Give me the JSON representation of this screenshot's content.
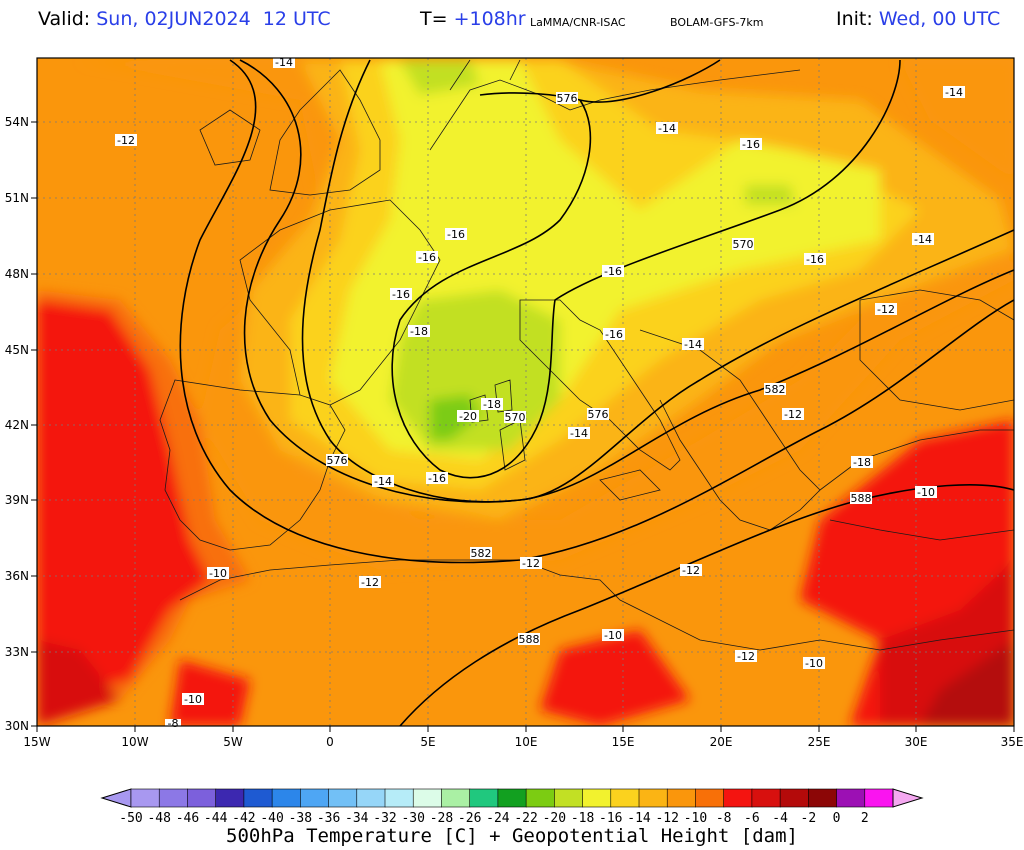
{
  "header": {
    "valid_label": "Valid:",
    "valid_value": "Sun, 02JUN2024  12 UTC",
    "t_label": "T=",
    "t_value": "+108hr",
    "source": "LaMMA/CNR-ISAC",
    "model": "BOLAM-GFS-7km",
    "init_label": "Init:",
    "init_value": "Wed, 00 UTC",
    "blue": "#2a3fe8"
  },
  "map": {
    "lon_ticks": [
      "15W",
      "10W",
      "5W",
      "0",
      "5E",
      "10E",
      "15E",
      "20E",
      "25E",
      "30E",
      "35E"
    ],
    "lat_ticks": [
      "54N",
      "51N",
      "48N",
      "45N",
      "42N",
      "39N",
      "36N",
      "33N",
      "30N"
    ],
    "temp_labels": [
      {
        "text": "-14"
      },
      {
        "text": "-12"
      },
      {
        "text": "-14"
      },
      {
        "text": "-16"
      },
      {
        "text": "-14"
      },
      {
        "text": "-16"
      },
      {
        "text": "-16"
      },
      {
        "text": "-16"
      },
      {
        "text": "-16"
      },
      {
        "text": "-14"
      },
      {
        "text": "-18"
      },
      {
        "text": "-16"
      },
      {
        "text": "-12"
      },
      {
        "text": "-16"
      },
      {
        "text": "-14"
      },
      {
        "text": "-18"
      },
      {
        "text": "-20"
      },
      {
        "text": "-12"
      },
      {
        "text": "-14"
      },
      {
        "text": "-16"
      },
      {
        "text": "-14"
      },
      {
        "text": "-10"
      },
      {
        "text": "-12"
      },
      {
        "text": "-10"
      },
      {
        "text": "-12"
      },
      {
        "text": "-12"
      },
      {
        "text": "-10"
      },
      {
        "text": "-12"
      },
      {
        "text": "-10"
      },
      {
        "text": "-10"
      },
      {
        "text": "-8"
      },
      {
        "text": "-18"
      }
    ],
    "height_labels": [
      {
        "text": "576"
      },
      {
        "text": "570"
      },
      {
        "text": "570"
      },
      {
        "text": "576"
      },
      {
        "text": "576"
      },
      {
        "text": "582"
      },
      {
        "text": "582"
      },
      {
        "text": "588"
      },
      {
        "text": "588"
      }
    ]
  },
  "colorbar": {
    "labels": [
      "-50",
      "-48",
      "-46",
      "-44",
      "-42",
      "-40",
      "-38",
      "-36",
      "-34",
      "-32",
      "-30",
      "-28",
      "-26",
      "-24",
      "-22",
      "-20",
      "-18",
      "-16",
      "-14",
      "-12",
      "-10",
      "-8",
      "-6",
      "-4",
      "-2",
      "0",
      "2"
    ],
    "colors": [
      "#a898f0",
      "#8c78e6",
      "#7c60dc",
      "#3c28b0",
      "#1e5ad2",
      "#2c86ea",
      "#4ea6f4",
      "#72c0f6",
      "#96d6f8",
      "#b6ecf8",
      "#dcfce8",
      "#aaf0a4",
      "#20c87e",
      "#12a020",
      "#7ccc12",
      "#c2e024",
      "#f2f22e",
      "#fbd21e",
      "#fbb414",
      "#fa960c",
      "#f87008",
      "#f41410",
      "#d8100e",
      "#b40a0a",
      "#8c0606",
      "#9c10b4",
      "#fa14f0"
    ],
    "title": "500hPa Temperature [C] + Geopotential Height [dam]"
  }
}
